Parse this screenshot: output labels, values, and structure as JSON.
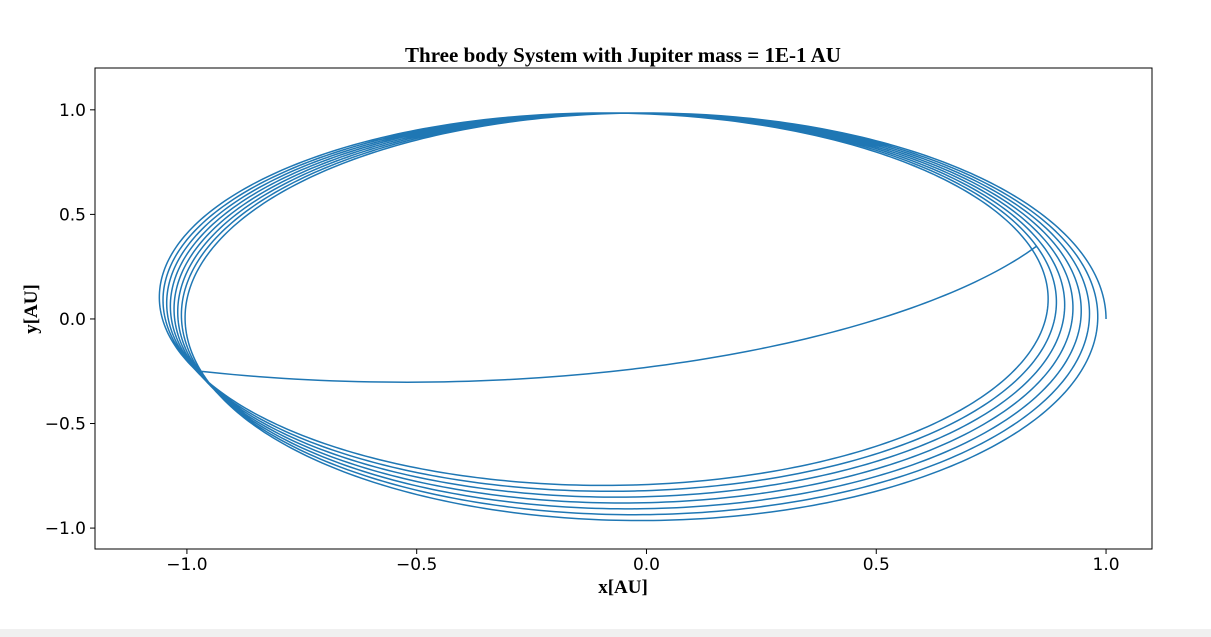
{
  "chart_data": {
    "type": "line",
    "title": "Three body System with Jupiter mass = 1E-1 AU",
    "xlabel": "x[AU]",
    "ylabel": "y[AU]",
    "xlim": [
      -1.2,
      1.1
    ],
    "ylim": [
      -1.1,
      1.2
    ],
    "xticks": [
      -1.0,
      -0.5,
      0.0,
      0.5,
      1.0
    ],
    "xtick_labels": [
      "−1.0",
      "−0.5",
      "0.0",
      "0.5",
      "1.0"
    ],
    "yticks": [
      -1.0,
      -0.5,
      0.0,
      0.5,
      1.0
    ],
    "ytick_labels": [
      "−1.0",
      "−0.5",
      "0.0",
      "0.5",
      "1.0"
    ],
    "grid": false,
    "line_color": "#1f77b4",
    "series": [
      {
        "orbit": {
          "start": [
            1.0,
            0.0
          ],
          "end": [
            0.85,
            0.35
          ],
          "turns": 7.8,
          "center_start": [
            0.0,
            0.0
          ],
          "center_shift_per_turn": [
            -0.013,
            0.014
          ],
          "semi_major_start": 1.0,
          "semi_major_shrink_per_turn": 0.005,
          "semi_minor_start": 0.985,
          "semi_minor_shrink_per_turn": 0.014,
          "tilt_deg": 0
        }
      }
    ]
  }
}
